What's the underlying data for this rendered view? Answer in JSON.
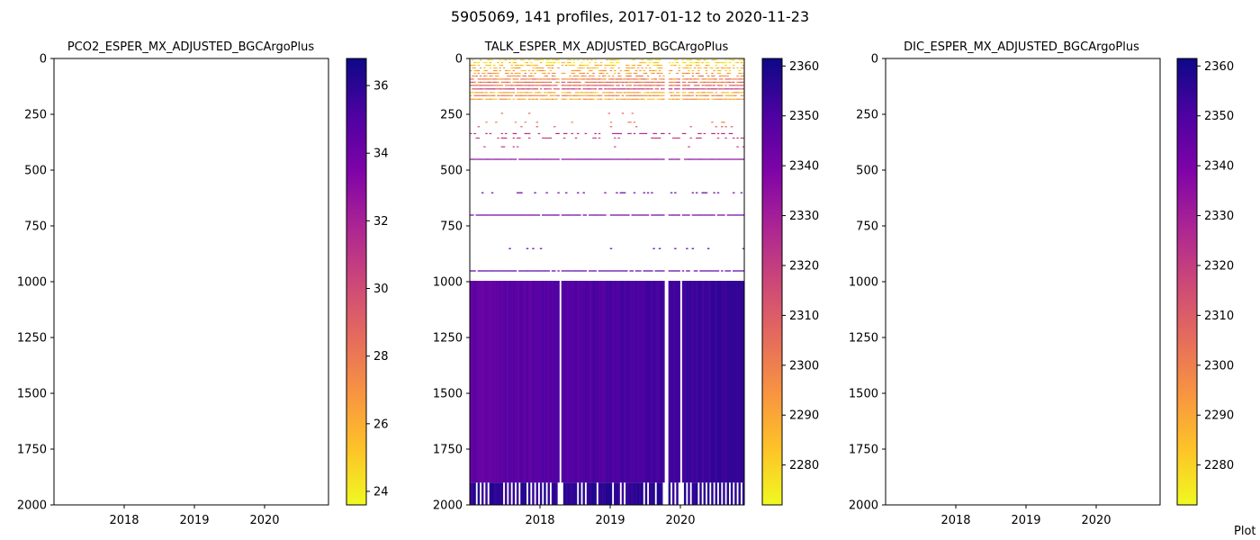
{
  "suptitle": "5905069, 141 profiles, 2017-01-12 to 2020-11-23",
  "credit": "Plot",
  "chart_data": [
    {
      "type": "heatmap",
      "title": "PCO2_ESPER_MX_ADJUSTED_BGCArgoPlus",
      "xlabel": "",
      "ylabel": "",
      "x_ticks": [
        "2018",
        "2019",
        "2020"
      ],
      "y_ticks": [
        0,
        250,
        500,
        750,
        1000,
        1250,
        1500,
        1750,
        2000
      ],
      "ylim": [
        2000,
        0
      ],
      "y_inverted": true,
      "colorbar": {
        "colormap": "plasma_r",
        "range": [
          23.6,
          36.8
        ],
        "ticks": [
          24,
          26,
          28,
          30,
          32,
          34,
          36
        ]
      },
      "profiles": 0,
      "layers": []
    },
    {
      "type": "heatmap",
      "title": "TALK_ESPER_MX_ADJUSTED_BGCArgoPlus",
      "xlabel": "",
      "ylabel": "",
      "x_ticks": [
        "2018",
        "2019",
        "2020"
      ],
      "y_ticks": [
        0,
        250,
        500,
        750,
        1000,
        1250,
        1500,
        1750,
        2000
      ],
      "ylim": [
        2000,
        0
      ],
      "y_inverted": true,
      "colorbar": {
        "colormap": "plasma_r",
        "range": [
          2272,
          2361.5
        ],
        "ticks": [
          2280,
          2290,
          2300,
          2310,
          2320,
          2330,
          2340,
          2350,
          2360
        ]
      },
      "profiles": 141,
      "missing_profiles": [
        46,
        100,
        101,
        108
      ],
      "layers": [
        {
          "depth_range": [
            0,
            10
          ],
          "value": 2276,
          "coverage": 0.5,
          "style": "speckle"
        },
        {
          "depth_range": [
            12,
            22
          ],
          "value": 2280,
          "coverage": 0.5,
          "style": "speckle"
        },
        {
          "depth_range": [
            24,
            34
          ],
          "value": 2284,
          "coverage": 0.5,
          "style": "speckle"
        },
        {
          "depth_range": [
            36,
            46
          ],
          "value": 2287,
          "coverage": 0.5,
          "style": "speckle"
        },
        {
          "depth_range": [
            48,
            58
          ],
          "value": 2290,
          "coverage": 0.5,
          "style": "speckle"
        },
        {
          "depth_range": [
            60,
            70
          ],
          "value": 2293,
          "coverage": 0.5,
          "style": "speckle"
        },
        {
          "depth_range": [
            72,
            82
          ],
          "value": 2296,
          "coverage": 0.5,
          "style": "speckle"
        },
        {
          "depth_range": [
            86,
            96
          ],
          "value": 2300,
          "coverage": 0.9,
          "style": "speckle"
        },
        {
          "depth_range": [
            100,
            110
          ],
          "value": 2303,
          "coverage": 0.9,
          "style": "speckle"
        },
        {
          "depth_range": [
            114,
            124
          ],
          "value": 2306,
          "coverage": 0.9,
          "style": "speckle"
        },
        {
          "depth_range": [
            130,
            140
          ],
          "value": 2316,
          "coverage": 0.9,
          "style": "speckle"
        },
        {
          "depth_range": [
            146,
            156
          ],
          "value": 2286,
          "coverage": 0.9,
          "style": "speckle"
        },
        {
          "depth_range": [
            160,
            170
          ],
          "value": 2296,
          "coverage": 0.9,
          "style": "speckle"
        },
        {
          "depth_range": [
            176,
            186
          ],
          "value": 2290,
          "coverage": 0.9,
          "style": "speckle"
        },
        {
          "depth_range": [
            240,
            248
          ],
          "value": 2305,
          "coverage": 0.05,
          "style": "sparse"
        },
        {
          "depth_range": [
            280,
            288
          ],
          "value": 2300,
          "coverage": 0.08,
          "style": "sparse"
        },
        {
          "depth_range": [
            300,
            308
          ],
          "value": 2310,
          "coverage": 0.08,
          "style": "sparse"
        },
        {
          "depth_range": [
            330,
            340
          ],
          "value": 2325,
          "coverage": 0.25,
          "style": "sparse"
        },
        {
          "depth_range": [
            350,
            360
          ],
          "value": 2318,
          "coverage": 0.3,
          "style": "sparse"
        },
        {
          "depth_range": [
            390,
            398
          ],
          "value": 2320,
          "coverage": 0.05,
          "style": "sparse"
        },
        {
          "depth_range": [
            446,
            454
          ],
          "value": 2336,
          "coverage": 0.98,
          "style": "band"
        },
        {
          "depth_range": [
            596,
            604
          ],
          "value": 2345,
          "coverage": 0.25,
          "style": "sparse"
        },
        {
          "depth_range": [
            696,
            704
          ],
          "value": 2343,
          "coverage": 0.95,
          "style": "band"
        },
        {
          "depth_range": [
            846,
            854
          ],
          "value": 2348,
          "coverage": 0.06,
          "style": "sparse"
        },
        {
          "depth_range": [
            946,
            954
          ],
          "value": 2348,
          "coverage": 0.9,
          "style": "band"
        },
        {
          "depth_range": [
            996,
            1900
          ],
          "value": 2345,
          "coverage": 1.0,
          "style": "column",
          "value_range": [
            2338,
            2358
          ]
        },
        {
          "depth_range": [
            1900,
            2000
          ],
          "value": 2356,
          "coverage": 0.6,
          "style": "column"
        }
      ]
    },
    {
      "type": "heatmap",
      "title": "DIC_ESPER_MX_ADJUSTED_BGCArgoPlus",
      "xlabel": "",
      "ylabel": "",
      "x_ticks": [
        "2018",
        "2019",
        "2020"
      ],
      "y_ticks": [
        0,
        250,
        500,
        750,
        1000,
        1250,
        1500,
        1750,
        2000
      ],
      "ylim": [
        2000,
        0
      ],
      "y_inverted": true,
      "colorbar": {
        "colormap": "plasma_r",
        "range": [
          2272,
          2361.5
        ],
        "ticks": [
          2280,
          2290,
          2300,
          2310,
          2320,
          2330,
          2340,
          2350,
          2360
        ]
      },
      "profiles": 0,
      "layers": []
    }
  ]
}
